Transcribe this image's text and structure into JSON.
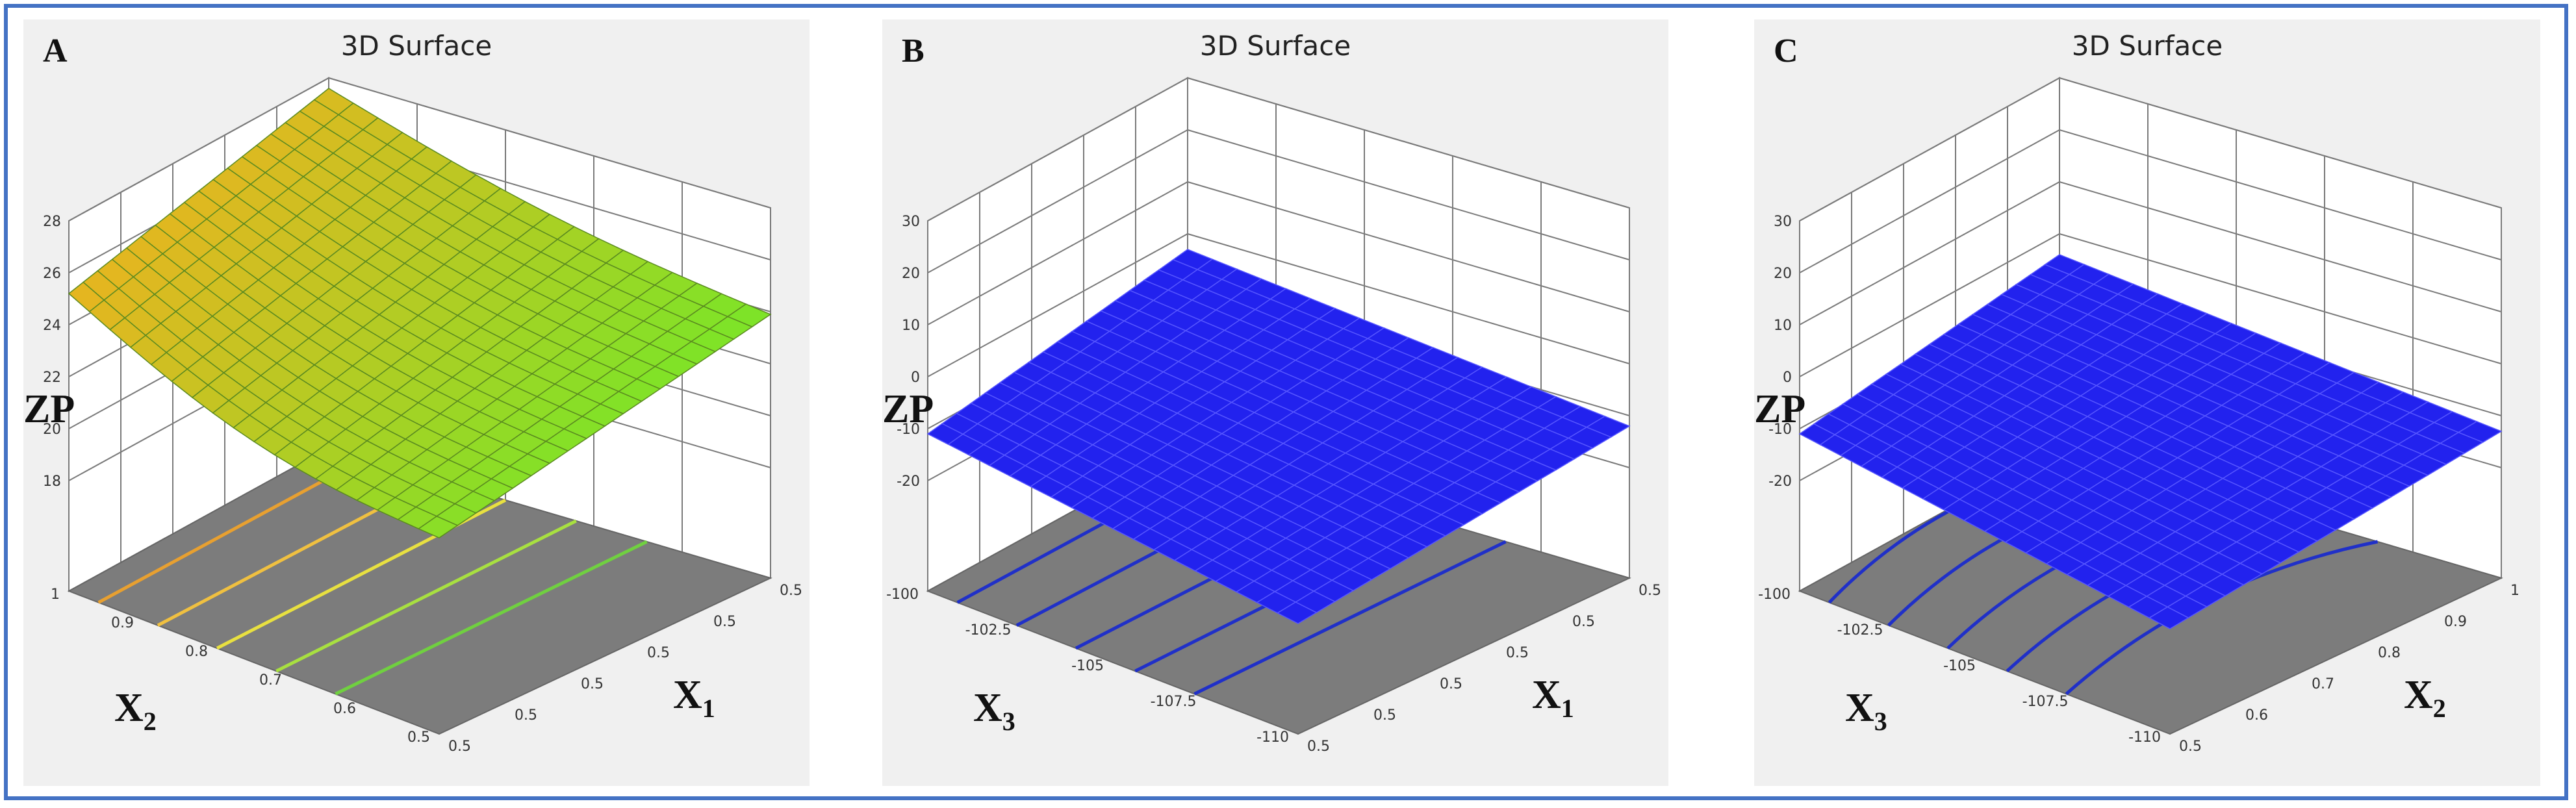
{
  "chart_data": [
    {
      "panel": "A",
      "type": "surface3d",
      "title": "3D Surface",
      "zlabel": "ZP",
      "xlabel": "X1",
      "ylabel": "X2",
      "z_ticks": [
        "18",
        "20",
        "22",
        "24",
        "26",
        "28"
      ],
      "x_ticks": [
        "0.5",
        "0.5",
        "0.5",
        "0.5",
        "0.5",
        "0.5"
      ],
      "y_ticks": [
        "1",
        "0.9",
        "0.8",
        "0.7",
        "0.6",
        "0.5"
      ],
      "surface_color": "gradient-green-orange",
      "contour_colors": [
        "#e8a030",
        "#f0c040",
        "#e8e040",
        "#a8e040",
        "#70d040"
      ],
      "z_corners": {
        "back_left": 25.2,
        "back_right": 27.6,
        "front_left": 21.3,
        "front_right": 23.9
      }
    },
    {
      "panel": "B",
      "type": "surface3d",
      "title": "3D Surface",
      "zlabel": "ZP",
      "xlabel": "X1",
      "ylabel": "X3",
      "z_ticks": [
        "-20",
        "-10",
        "0",
        "10",
        "20",
        "30"
      ],
      "x_ticks": [
        "0.5",
        "0.5",
        "0.5",
        "0.5",
        "0.5",
        "0.5"
      ],
      "y_ticks": [
        "-100",
        "-102.5",
        "-105",
        "-107.5",
        "-110"
      ],
      "surface_color": "#2222ee",
      "contour_colors": [
        "#2030c8",
        "#2030c8",
        "#2030c8",
        "#2030c8",
        "#2030c8"
      ],
      "z_corners": {
        "back_left": -11,
        "back_right": -3,
        "front_left": -20,
        "front_right": -12
      }
    },
    {
      "panel": "C",
      "type": "surface3d",
      "title": "3D Surface",
      "zlabel": "ZP",
      "xlabel": "X2",
      "ylabel": "X3",
      "z_ticks": [
        "-20",
        "-10",
        "0",
        "10",
        "20",
        "30"
      ],
      "x_ticks": [
        "0.5",
        "0.6",
        "0.7",
        "0.8",
        "0.9",
        "1"
      ],
      "y_ticks": [
        "-100",
        "-102.5",
        "-105",
        "-107.5",
        "-110"
      ],
      "surface_color": "#2222ee",
      "contour_colors": [
        "#2030c8",
        "#2030c8",
        "#2030c8",
        "#2030c8",
        "#2030c8"
      ],
      "z_corners": {
        "back_left": -11,
        "back_right": -4,
        "front_left": -21,
        "front_right": -13
      }
    }
  ]
}
